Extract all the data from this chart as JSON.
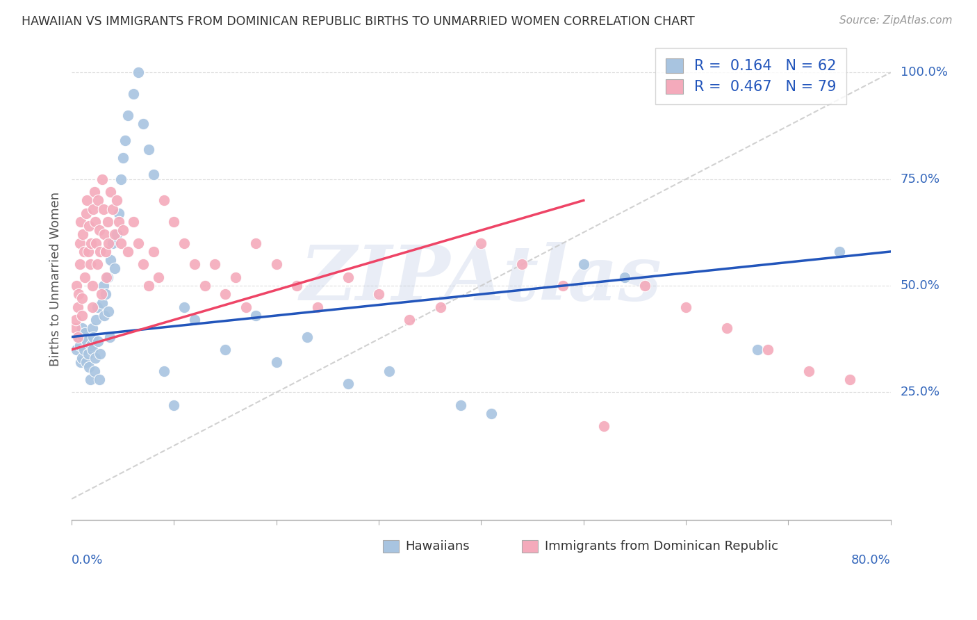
{
  "title": "HAWAIIAN VS IMMIGRANTS FROM DOMINICAN REPUBLIC BIRTHS TO UNMARRIED WOMEN CORRELATION CHART",
  "source": "Source: ZipAtlas.com",
  "ylabel": "Births to Unmarried Women",
  "ytick_labels": [
    "25.0%",
    "50.0%",
    "75.0%",
    "100.0%"
  ],
  "ytick_values": [
    0.25,
    0.5,
    0.75,
    1.0
  ],
  "xmin": 0.0,
  "xmax": 0.8,
  "ymin": -0.05,
  "ymax": 1.08,
  "blue_color": "#A8C4E0",
  "pink_color": "#F4AABB",
  "blue_line_color": "#2255BB",
  "pink_line_color": "#EE4466",
  "ref_line_color": "#CCCCCC",
  "legend_R_blue": "R = 0.164",
  "legend_N_blue": "N = 62",
  "legend_R_pink": "R = 0.467",
  "legend_N_pink": "N = 79",
  "watermark": "ZIPAtlas",
  "hawaiians_x": [
    0.005,
    0.007,
    0.008,
    0.009,
    0.01,
    0.01,
    0.011,
    0.012,
    0.013,
    0.014,
    0.015,
    0.016,
    0.017,
    0.018,
    0.019,
    0.02,
    0.02,
    0.021,
    0.022,
    0.023,
    0.024,
    0.025,
    0.026,
    0.027,
    0.028,
    0.03,
    0.031,
    0.032,
    0.033,
    0.035,
    0.036,
    0.037,
    0.038,
    0.04,
    0.042,
    0.044,
    0.046,
    0.048,
    0.05,
    0.052,
    0.055,
    0.06,
    0.065,
    0.07,
    0.075,
    0.08,
    0.09,
    0.1,
    0.11,
    0.12,
    0.15,
    0.18,
    0.2,
    0.23,
    0.27,
    0.31,
    0.38,
    0.41,
    0.5,
    0.54,
    0.67,
    0.75
  ],
  "hawaiians_y": [
    0.35,
    0.38,
    0.36,
    0.32,
    0.4,
    0.33,
    0.38,
    0.35,
    0.39,
    0.32,
    0.37,
    0.34,
    0.31,
    0.28,
    0.36,
    0.35,
    0.4,
    0.38,
    0.3,
    0.33,
    0.42,
    0.45,
    0.37,
    0.28,
    0.34,
    0.46,
    0.5,
    0.43,
    0.48,
    0.52,
    0.44,
    0.38,
    0.56,
    0.6,
    0.54,
    0.62,
    0.67,
    0.75,
    0.8,
    0.84,
    0.9,
    0.95,
    1.0,
    0.88,
    0.82,
    0.76,
    0.3,
    0.22,
    0.45,
    0.42,
    0.35,
    0.43,
    0.32,
    0.38,
    0.27,
    0.3,
    0.22,
    0.2,
    0.55,
    0.52,
    0.35,
    0.58
  ],
  "dominican_x": [
    0.003,
    0.004,
    0.005,
    0.006,
    0.006,
    0.007,
    0.008,
    0.008,
    0.009,
    0.01,
    0.01,
    0.011,
    0.012,
    0.013,
    0.014,
    0.015,
    0.016,
    0.017,
    0.018,
    0.019,
    0.02,
    0.02,
    0.021,
    0.022,
    0.023,
    0.024,
    0.025,
    0.026,
    0.027,
    0.028,
    0.029,
    0.03,
    0.031,
    0.032,
    0.033,
    0.034,
    0.035,
    0.036,
    0.038,
    0.04,
    0.042,
    0.044,
    0.046,
    0.048,
    0.05,
    0.055,
    0.06,
    0.065,
    0.07,
    0.075,
    0.08,
    0.085,
    0.09,
    0.1,
    0.11,
    0.12,
    0.13,
    0.14,
    0.15,
    0.16,
    0.17,
    0.18,
    0.2,
    0.22,
    0.24,
    0.27,
    0.3,
    0.33,
    0.36,
    0.4,
    0.44,
    0.48,
    0.52,
    0.56,
    0.6,
    0.64,
    0.68,
    0.72,
    0.76
  ],
  "dominican_y": [
    0.4,
    0.42,
    0.5,
    0.38,
    0.45,
    0.48,
    0.55,
    0.6,
    0.65,
    0.43,
    0.47,
    0.62,
    0.58,
    0.52,
    0.67,
    0.7,
    0.58,
    0.64,
    0.55,
    0.6,
    0.5,
    0.45,
    0.68,
    0.72,
    0.65,
    0.6,
    0.55,
    0.7,
    0.63,
    0.58,
    0.48,
    0.75,
    0.68,
    0.62,
    0.58,
    0.52,
    0.65,
    0.6,
    0.72,
    0.68,
    0.62,
    0.7,
    0.65,
    0.6,
    0.63,
    0.58,
    0.65,
    0.6,
    0.55,
    0.5,
    0.58,
    0.52,
    0.7,
    0.65,
    0.6,
    0.55,
    0.5,
    0.55,
    0.48,
    0.52,
    0.45,
    0.6,
    0.55,
    0.5,
    0.45,
    0.52,
    0.48,
    0.42,
    0.45,
    0.6,
    0.55,
    0.5,
    0.17,
    0.5,
    0.45,
    0.4,
    0.35,
    0.3,
    0.28
  ]
}
